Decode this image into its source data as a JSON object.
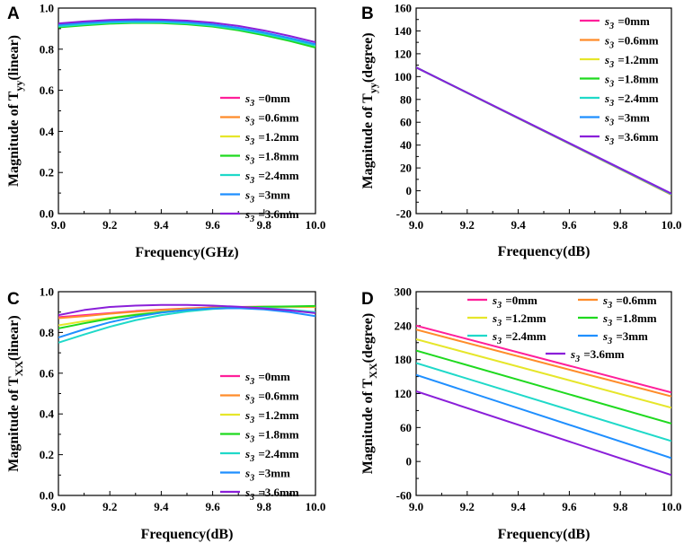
{
  "chart_data": [
    {
      "panel": "A",
      "type": "line",
      "xlabel": "Frequency(GHz)",
      "ylabel": "Magnitude of T_yy(linear)",
      "ylabel_main": "Magnitude of T",
      "ylabel_sub": "yy",
      "ylabel_tail": "(linear)",
      "xlim": [
        9.0,
        10.0
      ],
      "ylim": [
        0.0,
        1.0
      ],
      "xticks": [
        "9.0",
        "9.2",
        "9.4",
        "9.6",
        "9.8",
        "10.0"
      ],
      "yticks": [
        "0.0",
        "0.2",
        "0.4",
        "0.6",
        "0.8",
        "1.0"
      ],
      "legend_layout": "column",
      "legend_position": "center-right",
      "x": [
        9.0,
        9.1,
        9.2,
        9.3,
        9.4,
        9.5,
        9.6,
        9.7,
        9.8,
        9.9,
        10.0
      ],
      "series": [
        {
          "name": "s3 =0mm",
          "color": "#ff1f9a",
          "values": [
            0.915,
            0.925,
            0.932,
            0.935,
            0.934,
            0.928,
            0.917,
            0.899,
            0.874,
            0.845,
            0.815
          ]
        },
        {
          "name": "s3 =0.6mm",
          "color": "#ff8c2a",
          "values": [
            0.912,
            0.922,
            0.93,
            0.933,
            0.932,
            0.926,
            0.915,
            0.897,
            0.872,
            0.843,
            0.812
          ]
        },
        {
          "name": "s3 =1.2mm",
          "color": "#e6e62a",
          "values": [
            0.909,
            0.919,
            0.927,
            0.93,
            0.929,
            0.923,
            0.912,
            0.894,
            0.87,
            0.841,
            0.81
          ]
        },
        {
          "name": "s3 =1.8mm",
          "color": "#1fd91f",
          "values": [
            0.906,
            0.916,
            0.924,
            0.928,
            0.927,
            0.921,
            0.91,
            0.892,
            0.868,
            0.84,
            0.808
          ]
        },
        {
          "name": "s3 =2.4mm",
          "color": "#1fd9c9",
          "values": [
            0.911,
            0.921,
            0.929,
            0.932,
            0.931,
            0.926,
            0.915,
            0.898,
            0.875,
            0.847,
            0.817
          ]
        },
        {
          "name": "s3 =3mm",
          "color": "#1f8fff",
          "values": [
            0.918,
            0.928,
            0.935,
            0.938,
            0.937,
            0.932,
            0.921,
            0.904,
            0.881,
            0.854,
            0.824
          ]
        },
        {
          "name": "s3 =3.6mm",
          "color": "#8a1fd9",
          "values": [
            0.925,
            0.935,
            0.942,
            0.945,
            0.944,
            0.939,
            0.929,
            0.913,
            0.891,
            0.864,
            0.834
          ]
        }
      ]
    },
    {
      "panel": "B",
      "type": "line",
      "xlabel": "Frequency(dB)",
      "ylabel": "Magnitude of T_yy(degree)",
      "ylabel_main": "Magnitude of T",
      "ylabel_sub": "yy",
      "ylabel_tail": "(degree)",
      "xlim": [
        9.0,
        10.0
      ],
      "ylim": [
        -20,
        160
      ],
      "xticks": [
        "9.0",
        "9.2",
        "9.4",
        "9.6",
        "9.8",
        "10.0"
      ],
      "yticks": [
        "-20",
        "0",
        "20",
        "40",
        "60",
        "80",
        "100",
        "120",
        "140",
        "160"
      ],
      "legend_layout": "column",
      "legend_position": "top-right",
      "x": [
        9.0,
        10.0
      ],
      "series": [
        {
          "name": "s3 =0mm",
          "color": "#ff1f9a",
          "values": [
            108,
            -3
          ]
        },
        {
          "name": "s3 =0.6mm",
          "color": "#ff8c2a",
          "values": [
            108,
            -3.5
          ]
        },
        {
          "name": "s3 =1.2mm",
          "color": "#e6e62a",
          "values": [
            108,
            -3
          ]
        },
        {
          "name": "s3 =1.8mm",
          "color": "#1fd91f",
          "values": [
            108,
            -3
          ]
        },
        {
          "name": "s3 =2.4mm",
          "color": "#1fd9c9",
          "values": [
            108,
            -3
          ]
        },
        {
          "name": "s3 =3mm",
          "color": "#1f8fff",
          "values": [
            108,
            -2.5
          ]
        },
        {
          "name": "s3 =3.6mm",
          "color": "#8a1fd9",
          "values": [
            108,
            -2.5
          ]
        }
      ]
    },
    {
      "panel": "C",
      "type": "line",
      "xlabel": "Frequency(dB)",
      "ylabel": "Magnitude of T_XX(linear)",
      "ylabel_main": "Magnitude of T",
      "ylabel_sub": "XX",
      "ylabel_tail": "(linear)",
      "xlim": [
        9.0,
        10.0
      ],
      "ylim": [
        0.0,
        1.0
      ],
      "xticks": [
        "9.0",
        "9.2",
        "9.4",
        "9.6",
        "9.8",
        "10.0"
      ],
      "yticks": [
        "0.0",
        "0.2",
        "0.4",
        "0.6",
        "0.8",
        "1.0"
      ],
      "legend_layout": "column",
      "legend_position": "center-right",
      "x": [
        9.0,
        9.1,
        9.2,
        9.3,
        9.4,
        9.5,
        9.6,
        9.7,
        9.8,
        9.9,
        10.0
      ],
      "series": [
        {
          "name": "s3 =0mm",
          "color": "#ff1f9a",
          "values": [
            0.875,
            0.885,
            0.895,
            0.905,
            0.912,
            0.918,
            0.923,
            0.925,
            0.926,
            0.926,
            0.925
          ]
        },
        {
          "name": "s3 =0.6mm",
          "color": "#ff8c2a",
          "values": [
            0.87,
            0.88,
            0.892,
            0.902,
            0.91,
            0.917,
            0.922,
            0.925,
            0.926,
            0.926,
            0.925
          ]
        },
        {
          "name": "s3 =1.2mm",
          "color": "#e6e62a",
          "values": [
            0.835,
            0.855,
            0.872,
            0.888,
            0.9,
            0.91,
            0.917,
            0.922,
            0.925,
            0.927,
            0.928
          ]
        },
        {
          "name": "s3 =1.8mm",
          "color": "#1fd91f",
          "values": [
            0.82,
            0.845,
            0.868,
            0.886,
            0.9,
            0.91,
            0.918,
            0.923,
            0.926,
            0.928,
            0.93
          ]
        },
        {
          "name": "s3 =2.4mm",
          "color": "#1fd9c9",
          "values": [
            0.75,
            0.79,
            0.828,
            0.86,
            0.885,
            0.903,
            0.915,
            0.921,
            0.92,
            0.912,
            0.9
          ]
        },
        {
          "name": "s3 =3mm",
          "color": "#1f8fff",
          "values": [
            0.775,
            0.815,
            0.85,
            0.877,
            0.897,
            0.911,
            0.918,
            0.919,
            0.913,
            0.9,
            0.88
          ]
        },
        {
          "name": "s3 =3.6mm",
          "color": "#8a1fd9",
          "values": [
            0.885,
            0.91,
            0.925,
            0.932,
            0.935,
            0.935,
            0.932,
            0.926,
            0.918,
            0.908,
            0.895
          ]
        }
      ]
    },
    {
      "panel": "D",
      "type": "line",
      "xlabel": "Frequency(dB)",
      "ylabel": "Magnitude of T_XX(degree)",
      "ylabel_main": "Magnitude of T",
      "ylabel_sub": "XX",
      "ylabel_tail": "(degree)",
      "xlim": [
        9.0,
        10.0
      ],
      "ylim": [
        -60,
        300
      ],
      "xticks": [
        "9.0",
        "9.2",
        "9.4",
        "9.6",
        "9.8",
        "10.0"
      ],
      "yticks": [
        "-60",
        "0",
        "60",
        "120",
        "180",
        "240",
        "300"
      ],
      "legend_layout": "grid",
      "legend_position": "top",
      "x": [
        9.0,
        10.0
      ],
      "series": [
        {
          "name": "s3 =0mm",
          "color": "#ff1f9a",
          "values": [
            240,
            122
          ]
        },
        {
          "name": "s3 =0.6mm",
          "color": "#ff8c2a",
          "values": [
            233,
            115
          ]
        },
        {
          "name": "s3 =1.2mm",
          "color": "#e6e62a",
          "values": [
            216,
            95
          ]
        },
        {
          "name": "s3 =1.8mm",
          "color": "#1fd91f",
          "values": [
            196,
            67
          ]
        },
        {
          "name": "s3 =2.4mm",
          "color": "#1fd9c9",
          "values": [
            174,
            36
          ]
        },
        {
          "name": "s3 =3mm",
          "color": "#1f8fff",
          "values": [
            153,
            6
          ]
        },
        {
          "name": "s3 =3.6mm",
          "color": "#8a1fd9",
          "values": [
            124,
            -24
          ]
        }
      ]
    }
  ]
}
